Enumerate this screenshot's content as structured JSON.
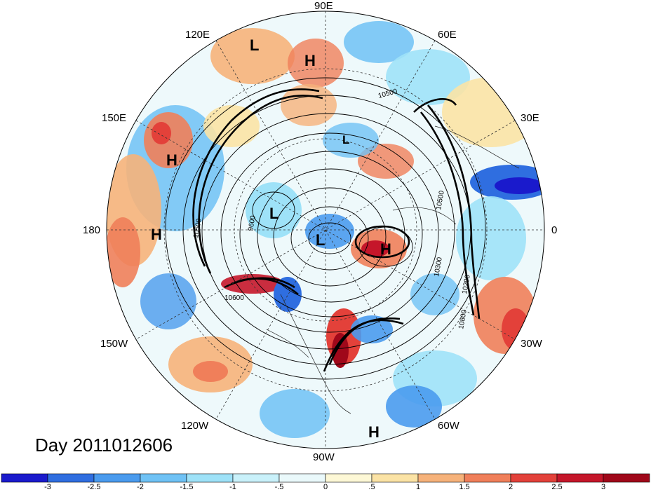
{
  "title": "Day 2011012606",
  "longitude_labels": [
    "90E",
    "60E",
    "30E",
    "0",
    "30W",
    "60W",
    "90W",
    "120W",
    "150W",
    "180",
    "150E",
    "120E"
  ],
  "pressure_centers": [
    "L",
    "H",
    "H",
    "H",
    "L",
    "L",
    "L",
    "H",
    "H"
  ],
  "contour_labels": [
    "10500",
    "10500",
    "9600",
    "10300",
    "10200",
    "10600",
    "10800",
    "10500"
  ],
  "colorbar": {
    "ticks": [
      "-3",
      "-2.5",
      "-2",
      "-1.5",
      "-1",
      "-.5",
      "0",
      ".5",
      "1",
      "1.5",
      "2",
      "2.5",
      "3"
    ],
    "colors": [
      "#1a1acc",
      "#2f6ee0",
      "#4a9bee",
      "#6fc2f5",
      "#9ee2f8",
      "#c9f1fa",
      "#eaf9fb",
      "#fdf8d6",
      "#fbe3a5",
      "#f6b27a",
      "#f07f5a",
      "#e3413a",
      "#c5162a",
      "#a0081a"
    ]
  }
}
